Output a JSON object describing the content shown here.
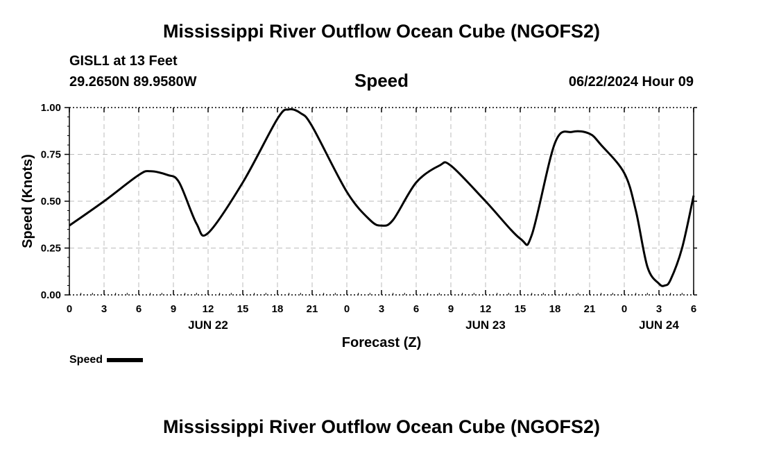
{
  "page": {
    "title_top": "Mississippi River Outflow Ocean Cube (NGOFS2)",
    "title_bottom": "Mississippi River Outflow Ocean Cube (NGOFS2)",
    "station": "GISL1 at 13 Feet",
    "coords": "29.2650N  89.9580W",
    "panel_title": "Speed",
    "timestamp": "06/22/2024 Hour 09",
    "legend_label": "Speed"
  },
  "chart_data": {
    "type": "line",
    "title": "Speed",
    "xlabel": "Forecast (Z)",
    "ylabel": "Speed (Knots)",
    "xlim": [
      0,
      54
    ],
    "ylim": [
      0,
      1
    ],
    "grid": true,
    "legend": "bottom-left",
    "x_tick_labels": [
      "0",
      "3",
      "6",
      "9",
      "12",
      "15",
      "18",
      "21",
      "0",
      "3",
      "6",
      "9",
      "12",
      "15",
      "18",
      "21",
      "0",
      "3",
      "6"
    ],
    "y_tick_labels": [
      "0.00",
      "0.25",
      "0.50",
      "0.75",
      "1.00"
    ],
    "y_tick_values": [
      0,
      0.25,
      0.5,
      0.75,
      1.0
    ],
    "day_labels": [
      {
        "label": "JUN 22",
        "hour": 12
      },
      {
        "label": "JUN 23",
        "hour": 36
      },
      {
        "label": "JUN 24",
        "hour": 51
      }
    ],
    "series": [
      {
        "name": "Speed",
        "color": "#000000",
        "x": [
          0,
          3,
          6,
          7,
          8.5,
          9.5,
          11,
          12,
          15,
          18,
          19,
          20,
          21,
          24,
          26,
          27,
          28,
          30,
          32,
          33,
          36,
          39,
          40,
          42,
          43.5,
          45,
          46,
          48,
          49,
          50,
          51,
          51.5,
          52,
          53,
          54
        ],
        "values": [
          0.37,
          0.5,
          0.64,
          0.66,
          0.64,
          0.6,
          0.38,
          0.33,
          0.6,
          0.94,
          0.99,
          0.97,
          0.9,
          0.55,
          0.4,
          0.37,
          0.4,
          0.6,
          0.69,
          0.69,
          0.5,
          0.3,
          0.32,
          0.81,
          0.87,
          0.86,
          0.8,
          0.65,
          0.45,
          0.15,
          0.06,
          0.05,
          0.08,
          0.25,
          0.53
        ]
      }
    ]
  }
}
